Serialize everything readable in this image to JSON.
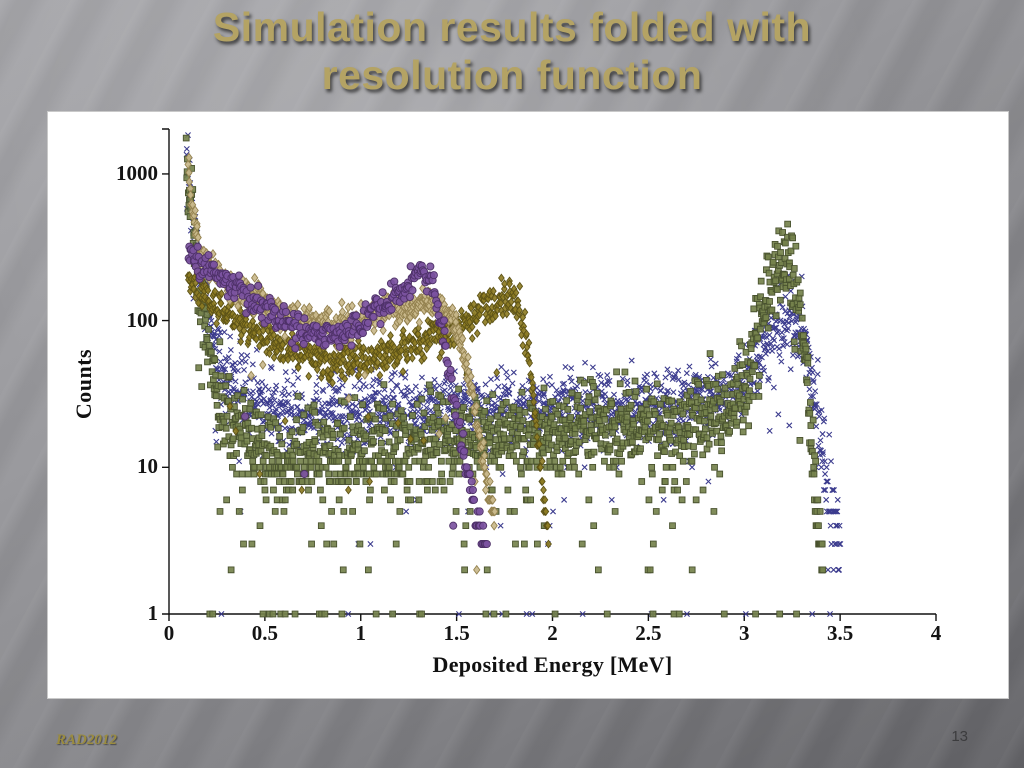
{
  "slide": {
    "title_line1": "Simulation results folded with",
    "title_line2": "resolution function",
    "title_color": "#b4a364",
    "footer_color": "#9b8c3e",
    "footer_left": "RAD2012",
    "page_number": "13"
  },
  "chart_data": {
    "type": "scatter",
    "title": "",
    "xlabel": "Deposited Energy [MeV]",
    "ylabel": "Counts",
    "x_ticks": [
      0,
      0.5,
      1,
      1.5,
      2,
      2.5,
      3,
      3.5,
      4
    ],
    "x_tick_labels": [
      "0",
      "0.5",
      "1",
      "1.5",
      "2",
      "2.5",
      "3",
      "3.5",
      "4"
    ],
    "y_ticks": [
      1,
      10,
      100,
      1000
    ],
    "y_tick_labels": [
      "1",
      "10",
      "100",
      "1000"
    ],
    "xlim": [
      0,
      4
    ],
    "ylim": [
      1,
      2000
    ],
    "y_scale": "log",
    "grid": false,
    "legend": "none",
    "background": "#ffffff",
    "series": [
      {
        "name": "navy-cross-spectrum",
        "marker": "cross",
        "color": "#3c3c8e",
        "edge": "#3c3c8e",
        "size": 2.6,
        "sigma": 0.13,
        "dx": 0.002,
        "floor_prob": 0.01,
        "outlier_prob": 0.03,
        "envelope": [
          [
            0.09,
            1100
          ],
          [
            0.11,
            820
          ],
          [
            0.13,
            420
          ],
          [
            0.16,
            210
          ],
          [
            0.2,
            112
          ],
          [
            0.25,
            62
          ],
          [
            0.3,
            46
          ],
          [
            0.35,
            34
          ],
          [
            0.4,
            29
          ],
          [
            0.5,
            25
          ],
          [
            0.7,
            23
          ],
          [
            1.0,
            24
          ],
          [
            1.5,
            25
          ],
          [
            2.0,
            25
          ],
          [
            2.5,
            26
          ],
          [
            2.9,
            30
          ],
          [
            3.0,
            38
          ],
          [
            3.05,
            50
          ],
          [
            3.1,
            65
          ],
          [
            3.15,
            80
          ],
          [
            3.2,
            95
          ],
          [
            3.25,
            100
          ],
          [
            3.3,
            76
          ],
          [
            3.35,
            42
          ],
          [
            3.4,
            16
          ],
          [
            3.45,
            6
          ],
          [
            3.5,
            2.5
          ]
        ]
      },
      {
        "name": "green-square-spectrum",
        "marker": "square",
        "color": "#75824c",
        "edge": "#49522f",
        "size": 2.9,
        "sigma": 0.15,
        "dx": 0.0022,
        "floor_prob": 0.012,
        "outlier_prob": 0.045,
        "envelope": [
          [
            0.09,
            1060
          ],
          [
            0.11,
            720
          ],
          [
            0.13,
            330
          ],
          [
            0.16,
            145
          ],
          [
            0.2,
            72
          ],
          [
            0.25,
            36
          ],
          [
            0.3,
            23
          ],
          [
            0.4,
            15
          ],
          [
            0.5,
            12
          ],
          [
            0.7,
            12
          ],
          [
            1.0,
            13
          ],
          [
            1.5,
            15
          ],
          [
            2.0,
            17
          ],
          [
            2.5,
            19
          ],
          [
            2.8,
            21
          ],
          [
            2.95,
            27
          ],
          [
            3.0,
            36
          ],
          [
            3.05,
            62
          ],
          [
            3.1,
            115
          ],
          [
            3.15,
            185
          ],
          [
            3.2,
            245
          ],
          [
            3.24,
            232
          ],
          [
            3.28,
            142
          ],
          [
            3.32,
            52
          ],
          [
            3.35,
            16
          ],
          [
            3.38,
            5
          ],
          [
            3.41,
            2
          ]
        ]
      },
      {
        "name": "olive-diamond-spectrum",
        "marker": "diamond",
        "color": "#8d7c24",
        "edge": "#5d5317",
        "size": 2.8,
        "sigma": 0.06,
        "dx": 0.003,
        "floor_prob": 0,
        "outlier_prob": 0.012,
        "envelope": [
          [
            0.1,
            212
          ],
          [
            0.15,
            172
          ],
          [
            0.2,
            146
          ],
          [
            0.3,
            116
          ],
          [
            0.4,
            93
          ],
          [
            0.5,
            76
          ],
          [
            0.6,
            64
          ],
          [
            0.7,
            57
          ],
          [
            0.8,
            53
          ],
          [
            0.9,
            51
          ],
          [
            1.0,
            52
          ],
          [
            1.1,
            56
          ],
          [
            1.2,
            61
          ],
          [
            1.3,
            69
          ],
          [
            1.4,
            79
          ],
          [
            1.5,
            93
          ],
          [
            1.6,
            112
          ],
          [
            1.7,
            130
          ],
          [
            1.78,
            142
          ],
          [
            1.83,
            126
          ],
          [
            1.86,
            82
          ],
          [
            1.89,
            42
          ],
          [
            1.92,
            16
          ],
          [
            1.95,
            7
          ],
          [
            1.98,
            3
          ]
        ]
      },
      {
        "name": "tan-diamond-spectrum",
        "marker": "diamond",
        "color": "#c9b98b",
        "edge": "#94824f",
        "size": 3.1,
        "sigma": 0.05,
        "dx": 0.0025,
        "floor_prob": 0,
        "outlier_prob": 0.012,
        "envelope": [
          [
            0.1,
            1150
          ],
          [
            0.12,
            620
          ],
          [
            0.14,
            400
          ],
          [
            0.17,
            290
          ],
          [
            0.2,
            245
          ],
          [
            0.25,
            210
          ],
          [
            0.3,
            188
          ],
          [
            0.4,
            152
          ],
          [
            0.5,
            128
          ],
          [
            0.6,
            108
          ],
          [
            0.7,
            97
          ],
          [
            0.8,
            91
          ],
          [
            0.9,
            93
          ],
          [
            1.0,
            102
          ],
          [
            1.1,
            114
          ],
          [
            1.2,
            124
          ],
          [
            1.3,
            130
          ],
          [
            1.4,
            126
          ],
          [
            1.45,
            116
          ],
          [
            1.5,
            88
          ],
          [
            1.54,
            58
          ],
          [
            1.58,
            32
          ],
          [
            1.62,
            16
          ],
          [
            1.66,
            8
          ],
          [
            1.7,
            4
          ]
        ]
      },
      {
        "name": "purple-circle-spectrum",
        "marker": "circle",
        "color": "#7b539f",
        "edge": "#4e3168",
        "size": 3.6,
        "sigma": 0.05,
        "dx": 0.004,
        "floor_prob": 0,
        "outlier_prob": 0.012,
        "envelope": [
          [
            0.1,
            310
          ],
          [
            0.15,
            262
          ],
          [
            0.2,
            232
          ],
          [
            0.3,
            186
          ],
          [
            0.4,
            152
          ],
          [
            0.5,
            124
          ],
          [
            0.6,
            101
          ],
          [
            0.7,
            86
          ],
          [
            0.8,
            79
          ],
          [
            0.9,
            81
          ],
          [
            1.0,
            96
          ],
          [
            1.1,
            122
          ],
          [
            1.2,
            158
          ],
          [
            1.28,
            192
          ],
          [
            1.33,
            218
          ],
          [
            1.37,
            192
          ],
          [
            1.4,
            132
          ],
          [
            1.43,
            82
          ],
          [
            1.46,
            46
          ],
          [
            1.5,
            22
          ],
          [
            1.55,
            10
          ],
          [
            1.6,
            5
          ],
          [
            1.66,
            2.5
          ]
        ]
      }
    ]
  }
}
